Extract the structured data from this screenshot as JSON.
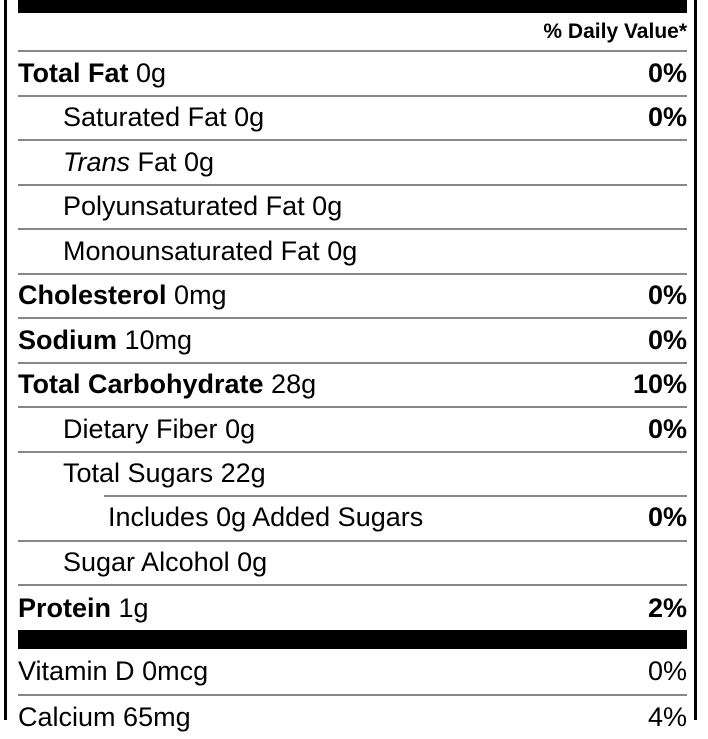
{
  "meta": {
    "background": "#ffffff",
    "text-color": "#000000",
    "separator-color": "#878787",
    "bar-color": "#000000"
  },
  "header": {
    "daily_value": "% Daily Value*"
  },
  "rows": [
    {
      "name": "Total Fat",
      "amount": "0g",
      "dv": "0%"
    },
    {
      "name": "Saturated Fat",
      "amount": "0g",
      "dv": "0%"
    },
    {
      "name": "Trans",
      "amount": "Fat 0g",
      "dv": ""
    },
    {
      "name": "Polyunsaturated Fat",
      "amount": "0g",
      "dv": ""
    },
    {
      "name": "Monounsaturated Fat",
      "amount": "0g",
      "dv": ""
    },
    {
      "name": "Cholesterol",
      "amount": "0mg",
      "dv": "0%"
    },
    {
      "name": "Sodium",
      "amount": "10mg",
      "dv": "0%"
    },
    {
      "name": "Total Carbohydrate",
      "amount": "28g",
      "dv": "10%"
    },
    {
      "name": "Dietary Fiber",
      "amount": "0g",
      "dv": "0%"
    },
    {
      "name": "Total Sugars",
      "amount": "22g",
      "dv": ""
    },
    {
      "name": "Includes 0g Added Sugars",
      "amount": "",
      "dv": "0%"
    },
    {
      "name": "Sugar Alcohol",
      "amount": "0g",
      "dv": ""
    },
    {
      "name": "Protein",
      "amount": "1g",
      "dv": "2%"
    },
    {
      "name": "Vitamin D",
      "amount": "0mcg",
      "dv": "0%"
    },
    {
      "name": "Calcium",
      "amount": "65mg",
      "dv": "4%"
    }
  ]
}
